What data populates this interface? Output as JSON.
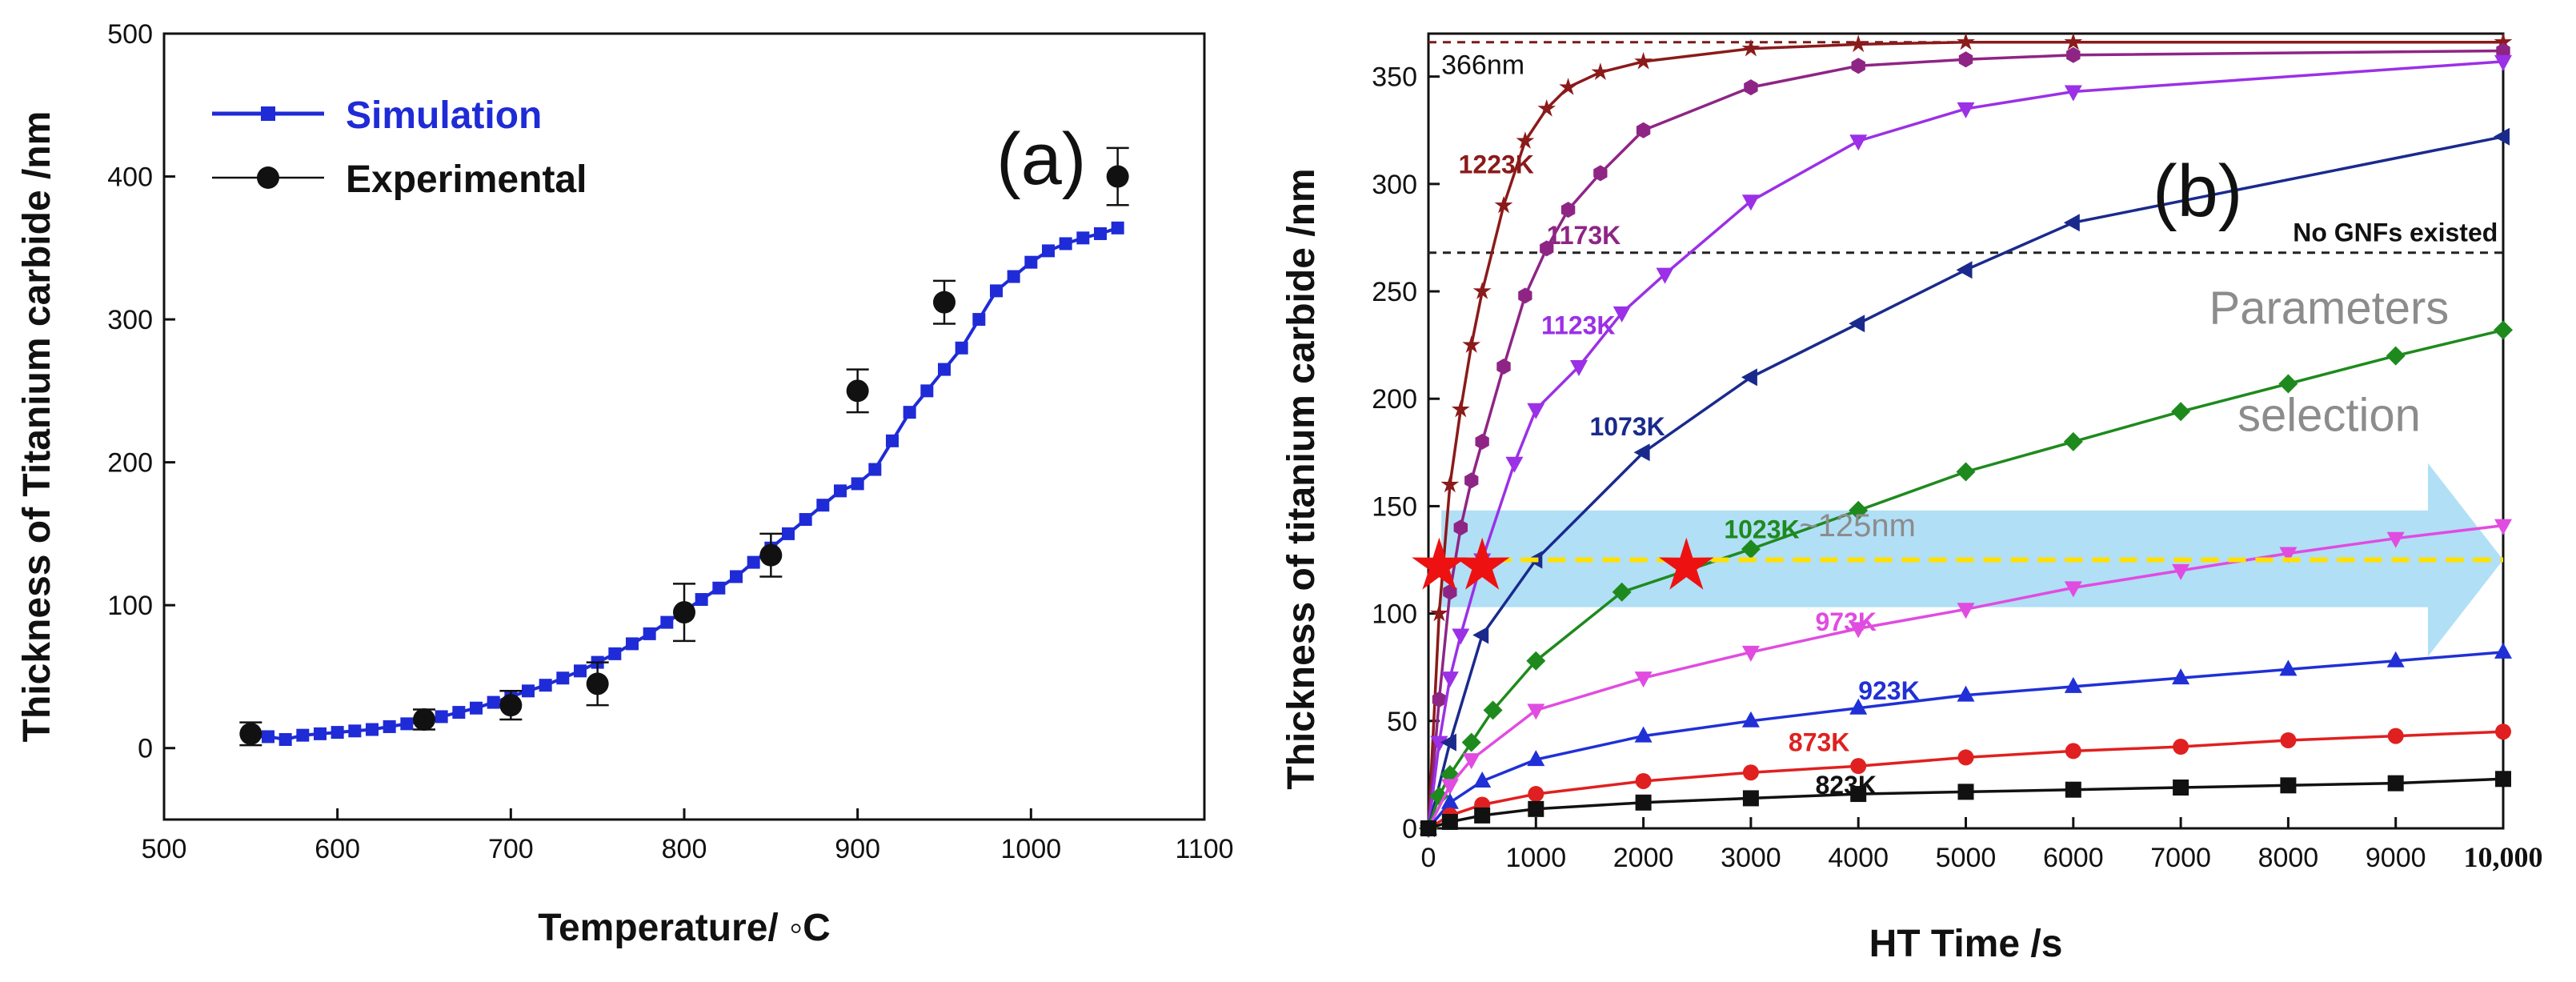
{
  "chart_data": [
    {
      "panel_label": "(a)",
      "type": "line",
      "xlabel": "Temperature/ ◦C",
      "ylabel": "Thickness of Titanium carbide /nm",
      "xlim": [
        500,
        1100
      ],
      "ylim": [
        -50,
        500
      ],
      "xticks": [
        "500",
        "600",
        "700",
        "800",
        "900",
        "1000",
        "1100"
      ],
      "yticks": [
        "0",
        "100",
        "200",
        "300",
        "400",
        "500"
      ],
      "legend": [
        "Simulation",
        "Experimental"
      ],
      "legend_position": "top-left",
      "series": [
        {
          "name": "Simulation",
          "color": "#1f2bd6",
          "marker": "square",
          "x": [
            550,
            560,
            570,
            580,
            590,
            600,
            610,
            620,
            630,
            640,
            650,
            660,
            670,
            680,
            690,
            700,
            710,
            720,
            730,
            740,
            750,
            760,
            770,
            780,
            790,
            800,
            810,
            820,
            830,
            840,
            850,
            860,
            870,
            880,
            890,
            900,
            910,
            920,
            930,
            940,
            950,
            960,
            970,
            980,
            990,
            1000,
            1010,
            1020,
            1030,
            1040,
            1050
          ],
          "y": [
            8,
            8,
            6,
            9,
            10,
            11,
            12,
            13,
            15,
            17,
            19,
            22,
            25,
            28,
            32,
            36,
            40,
            44,
            49,
            54,
            60,
            66,
            73,
            80,
            88,
            96,
            104,
            112,
            120,
            130,
            140,
            150,
            160,
            170,
            180,
            185,
            195,
            215,
            235,
            250,
            265,
            280,
            300,
            320,
            330,
            340,
            348,
            353,
            357,
            360,
            364
          ]
        },
        {
          "name": "Experimental",
          "color": "#111111",
          "marker": "circle",
          "x": [
            550,
            650,
            700,
            750,
            800,
            850,
            900,
            950,
            1050
          ],
          "y": [
            10,
            20,
            30,
            45,
            95,
            135,
            250,
            312,
            400
          ],
          "err": [
            8,
            7,
            10,
            15,
            20,
            15,
            15,
            15,
            20
          ]
        }
      ]
    },
    {
      "panel_label": "(b)",
      "type": "line",
      "xlabel": "HT Time /s",
      "ylabel": "Thickness of titanium carbide /nm",
      "xlim": [
        0,
        10000
      ],
      "ylim": [
        0,
        370
      ],
      "xticks": [
        "0",
        "1000",
        "2000",
        "3000",
        "4000",
        "5000",
        "6000",
        "7000",
        "8000",
        "9000",
        "10,000"
      ],
      "yticks": [
        "0",
        "50",
        "100",
        "150",
        "200",
        "250",
        "300",
        "350"
      ],
      "annotations": {
        "limit_line": {
          "label": "366nm",
          "y": 366
        },
        "gnf_line": {
          "label": "No GNFs existed",
          "y": 268
        },
        "target_line": {
          "label": "~125nm",
          "y": 125
        },
        "arrow_label": [
          "Parameters",
          "selection"
        ],
        "stars": [
          {
            "x": 100,
            "y": 122
          },
          {
            "x": 500,
            "y": 122
          },
          {
            "x": 2400,
            "y": 122
          }
        ]
      },
      "series": [
        {
          "name": "1223K",
          "color": "#8b1a1a",
          "marker": "star",
          "x": [
            0,
            100,
            200,
            300,
            400,
            500,
            700,
            900,
            1100,
            1300,
            1600,
            2000,
            3000,
            4000,
            5000,
            6000,
            10000
          ],
          "y": [
            0,
            100,
            160,
            195,
            225,
            250,
            290,
            320,
            335,
            345,
            352,
            357,
            363,
            365,
            366,
            366,
            366
          ]
        },
        {
          "name": "1173K",
          "color": "#8e2585",
          "marker": "hexagon",
          "x": [
            0,
            100,
            200,
            300,
            400,
            500,
            700,
            900,
            1100,
            1300,
            1600,
            2000,
            3000,
            4000,
            5000,
            6000,
            10000
          ],
          "y": [
            0,
            60,
            110,
            140,
            162,
            180,
            215,
            248,
            270,
            288,
            305,
            325,
            345,
            355,
            358,
            360,
            362
          ]
        },
        {
          "name": "1123K",
          "color": "#9b30e6",
          "marker": "triangle-down",
          "x": [
            0,
            100,
            200,
            300,
            500,
            800,
            1000,
            1400,
            1800,
            2200,
            3000,
            4000,
            5000,
            6000,
            10000
          ],
          "y": [
            0,
            40,
            70,
            90,
            125,
            170,
            195,
            215,
            240,
            258,
            292,
            320,
            335,
            343,
            357
          ]
        },
        {
          "name": "1073K",
          "color": "#1a2a8c",
          "marker": "triangle-left",
          "x": [
            0,
            200,
            500,
            1000,
            2000,
            3000,
            4000,
            5000,
            6000,
            10000
          ],
          "y": [
            0,
            40,
            90,
            125,
            175,
            210,
            235,
            260,
            282,
            322
          ]
        },
        {
          "name": "1023K",
          "color": "#1e8a1e",
          "marker": "diamond",
          "x": [
            0,
            100,
            200,
            400,
            600,
            1000,
            1800,
            3000,
            4000,
            5000,
            6000,
            7000,
            8000,
            9000,
            10000
          ],
          "y": [
            0,
            15,
            25,
            40,
            55,
            78,
            110,
            130,
            148,
            166,
            180,
            194,
            207,
            220,
            232
          ]
        },
        {
          "name": "973K",
          "color": "#e04ce0",
          "marker": "triangle-down",
          "x": [
            0,
            200,
            400,
            1000,
            2000,
            3000,
            4000,
            5000,
            6000,
            7000,
            8000,
            9000,
            10000
          ],
          "y": [
            0,
            20,
            32,
            55,
            70,
            82,
            93,
            102,
            112,
            120,
            128,
            135,
            141
          ]
        },
        {
          "name": "923K",
          "color": "#2030d6",
          "marker": "triangle-up",
          "x": [
            0,
            200,
            500,
            1000,
            2000,
            3000,
            4000,
            5000,
            6000,
            7000,
            8000,
            9000,
            10000
          ],
          "y": [
            0,
            12,
            22,
            32,
            43,
            50,
            56,
            62,
            66,
            70,
            74,
            78,
            82
          ]
        },
        {
          "name": "873K",
          "color": "#e02020",
          "marker": "circle",
          "x": [
            0,
            200,
            500,
            1000,
            2000,
            3000,
            4000,
            5000,
            6000,
            7000,
            8000,
            9000,
            10000
          ],
          "y": [
            0,
            6,
            11,
            16,
            22,
            26,
            29,
            33,
            36,
            38,
            41,
            43,
            45
          ]
        },
        {
          "name": "823K",
          "color": "#111111",
          "marker": "square",
          "x": [
            0,
            200,
            500,
            1000,
            2000,
            3000,
            4000,
            5000,
            6000,
            7000,
            8000,
            9000,
            10000
          ],
          "y": [
            0,
            3,
            6,
            9,
            12,
            14,
            16,
            17,
            18,
            19,
            20,
            21,
            23
          ]
        }
      ]
    }
  ]
}
